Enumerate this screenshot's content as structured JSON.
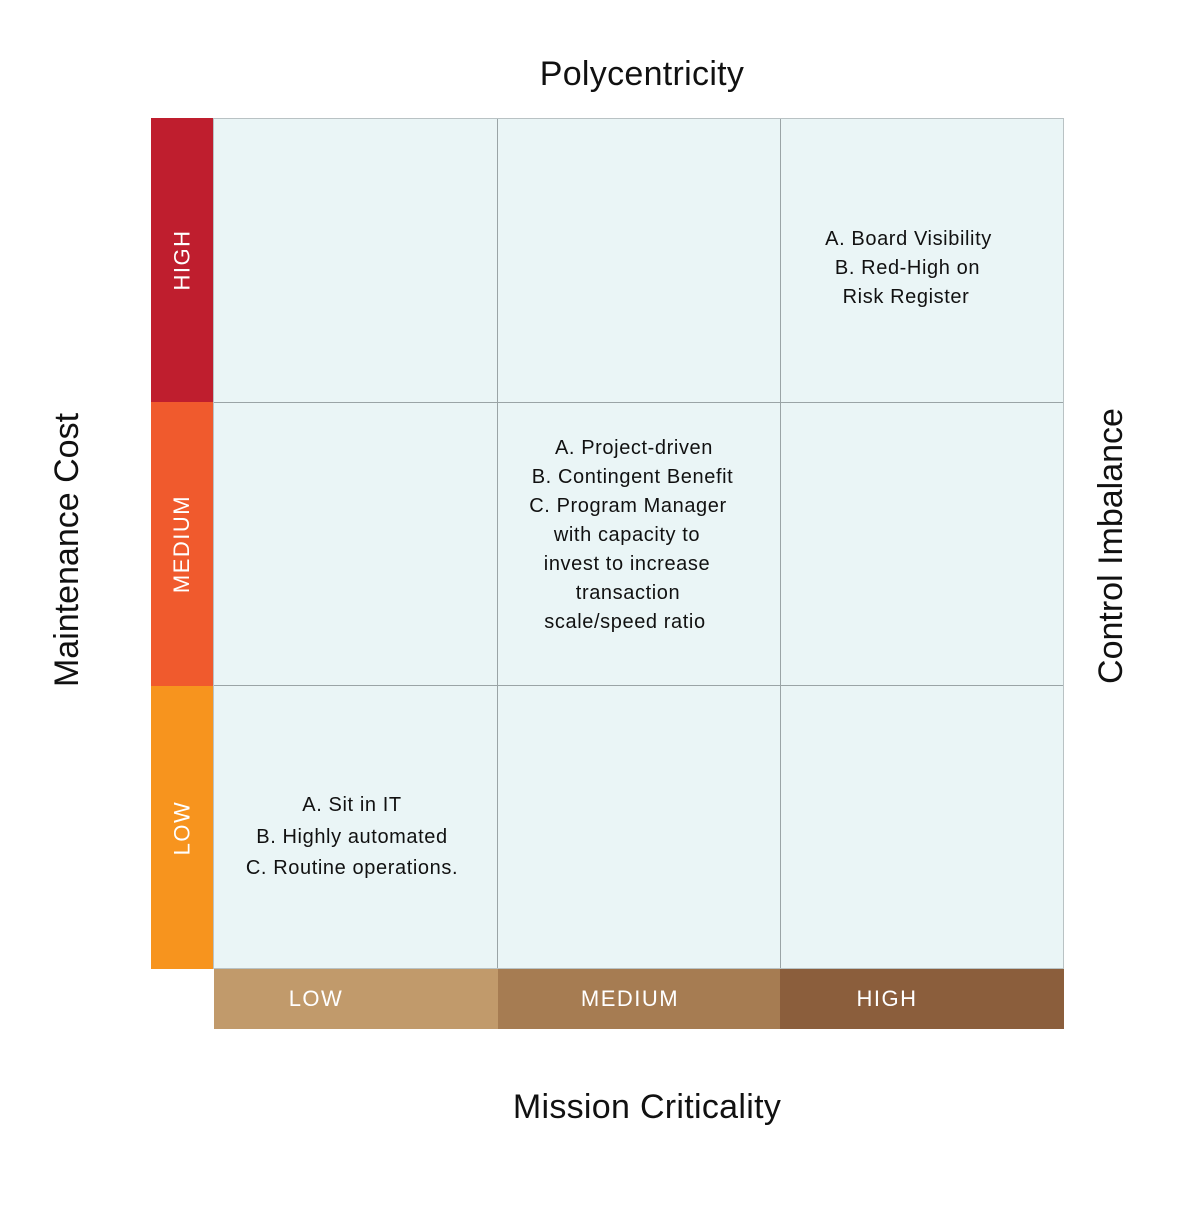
{
  "titles": {
    "top": "Polycentricity",
    "bottom": "Mission Criticality",
    "left": "Maintenance Cost",
    "right": "Control Imbalance"
  },
  "rows": [
    {
      "label": "HIGH",
      "color": "#bf1e2e"
    },
    {
      "label": "MEDIUM",
      "color": "#f05a2d"
    },
    {
      "label": "LOW",
      "color": "#f7941e"
    }
  ],
  "columns": [
    {
      "label": "LOW",
      "color": "#c19a6b"
    },
    {
      "label": "MEDIUM",
      "color": "#a67c52"
    },
    {
      "label": "HIGH",
      "color": "#8b5e3c"
    }
  ],
  "cells": {
    "high_high": [
      "A. Board Visibility",
      "B. Red-High on",
      "Risk Register"
    ],
    "medium_medium": [
      "A. Project-driven",
      "B. Contingent Benefit",
      "C. Program Manager",
      "with capacity to",
      "invest to increase",
      "transaction",
      "scale/speed ratio"
    ],
    "low_low": [
      "A. Sit in IT",
      "B. Highly automated",
      "C. Routine operations."
    ]
  },
  "grid_color": "#eaf5f6"
}
